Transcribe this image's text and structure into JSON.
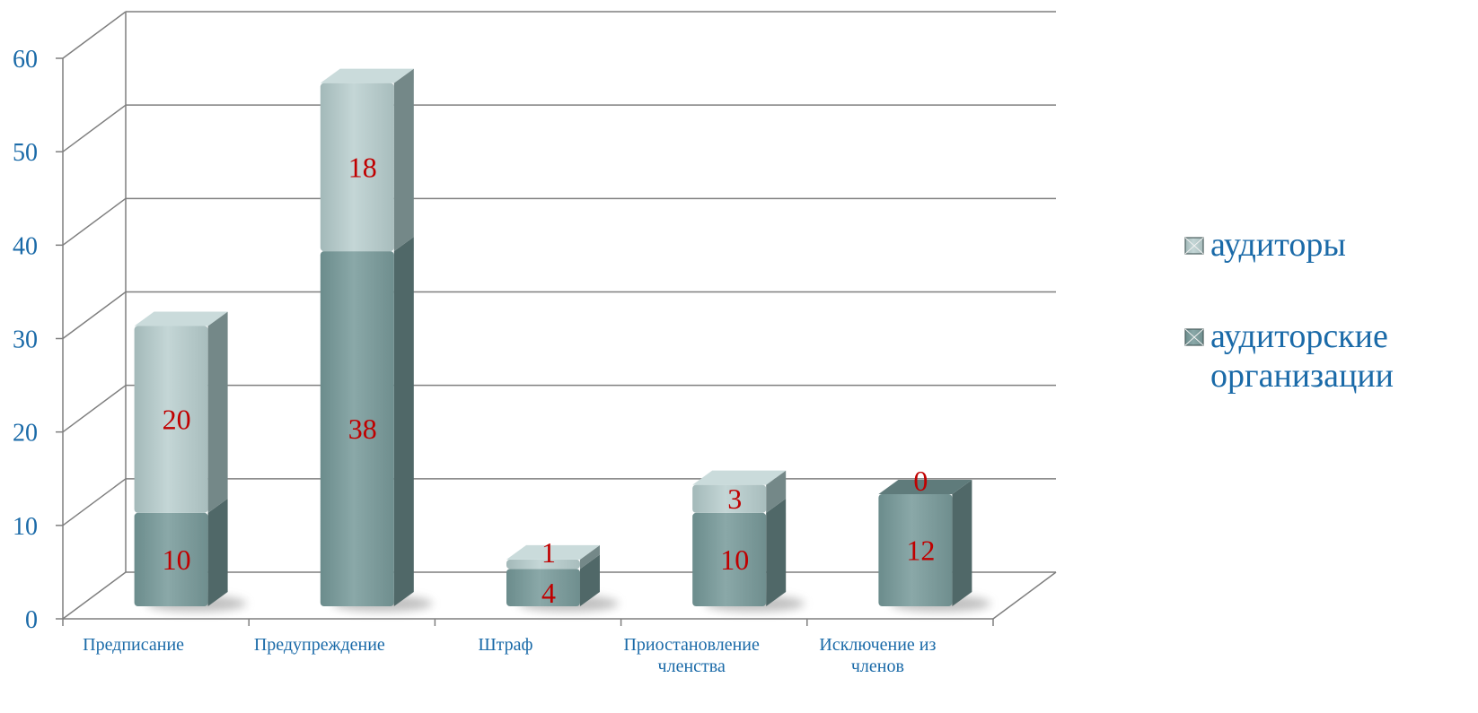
{
  "chart_data": {
    "type": "bar",
    "stacked": true,
    "categories": [
      [
        "Предписание"
      ],
      [
        "Предупреждение"
      ],
      [
        "Штраф"
      ],
      [
        "Приостановление",
        "членства"
      ],
      [
        "Исключение из",
        "членов"
      ]
    ],
    "series": [
      {
        "name": "аудиторские организации",
        "values": [
          10,
          38,
          4,
          10,
          12
        ],
        "color": "#7a9a9a"
      },
      {
        "name": "аудиторы",
        "values": [
          20,
          18,
          1,
          3,
          0
        ],
        "color": "#b4c8c8"
      }
    ],
    "ylim": [
      0,
      60
    ],
    "yticks": [
      0,
      10,
      20,
      30,
      40,
      50,
      60
    ],
    "grid": true,
    "legend_position": "right",
    "legend_order": [
      "аудиторы",
      "аудиторские организации"
    ],
    "legend_lines": {
      "аудиторы": [
        "аудиторы"
      ],
      "аудиторские организации": [
        "аудиторские",
        "организации"
      ]
    },
    "style": "3d-column",
    "axis_color": "#7f7f7f",
    "label_color": "#c00000",
    "text_color": "#1a6aa8"
  }
}
